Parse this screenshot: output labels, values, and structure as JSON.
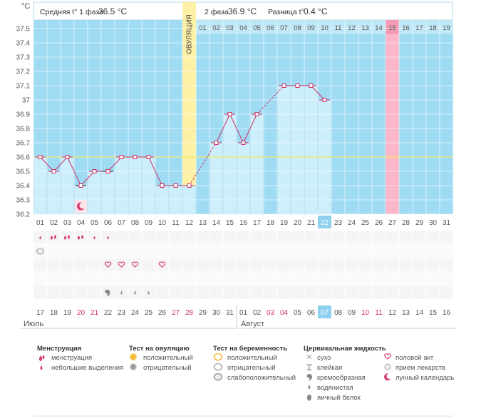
{
  "chart_data": {
    "type": "bar",
    "unit": "°С",
    "ylim": [
      36.2,
      37.5
    ],
    "y_ticks": [
      "36.2",
      "36.3",
      "36.4",
      "36.5",
      "36.6",
      "36.7",
      "36.8",
      "36.9",
      "37",
      "37.1",
      "37.2",
      "37.3",
      "37.4",
      "37.5"
    ],
    "cycle_days": [
      "01",
      "02",
      "03",
      "04",
      "05",
      "06",
      "07",
      "08",
      "09",
      "10",
      "11",
      "12",
      "13",
      "14",
      "15",
      "16",
      "17",
      "18",
      "19",
      "20",
      "21",
      "22",
      "23",
      "24",
      "25",
      "26",
      "27",
      "28",
      "29",
      "30",
      "31"
    ],
    "temperatures": [
      36.6,
      36.5,
      36.6,
      36.4,
      36.5,
      36.5,
      36.6,
      36.6,
      36.6,
      36.4,
      36.4,
      36.4,
      null,
      36.7,
      36.9,
      36.7,
      36.9,
      null,
      37.1,
      37.1,
      37.1,
      37.0,
      null,
      null,
      null,
      null,
      null,
      null,
      null,
      null,
      null
    ],
    "interpolated_days": [
      13,
      18
    ],
    "highlight_day_index": 21,
    "coverline": 36.6,
    "phase1": {
      "label": "Средняя t° 1 фаза",
      "value": "36.5 °С"
    },
    "phase2": {
      "label": "2 фаза",
      "value": "36.9 °С"
    },
    "difference": {
      "label": "Разница t°",
      "value": "0.4 °С"
    },
    "ovulation": {
      "label": "ОВУЛЯЦИЯ",
      "day_index": 11
    },
    "top_axis_days": [
      "01",
      "02",
      "03",
      "04",
      "05",
      "06",
      "07",
      "08",
      "09",
      "10",
      "11",
      "12",
      "13",
      "14",
      "15",
      "16",
      "17",
      "18",
      "19"
    ],
    "top_axis_start_index": 12,
    "pink_top_index": 26,
    "calendar_dates": [
      "17",
      "18",
      "19",
      "20",
      "21",
      "22",
      "23",
      "24",
      "25",
      "26",
      "27",
      "28",
      "29",
      "30",
      "31",
      "01",
      "02",
      "03",
      "04",
      "05",
      "06",
      "07",
      "08",
      "09",
      "10",
      "11",
      "12",
      "13",
      "14",
      "15",
      "16"
    ],
    "weekend_indices": [
      3,
      4,
      10,
      11,
      17,
      18,
      24,
      25
    ],
    "today_index": 21,
    "month1": "Июль",
    "month2": "Август",
    "month2_start_index": 15,
    "menstruation_rows": {
      "heavy": [
        1,
        2,
        3
      ],
      "light": [
        0,
        4,
        5
      ]
    },
    "moon_day_index": 3,
    "preg_test_day_index": 0,
    "heart_day_indices": [
      5,
      6,
      7,
      9
    ],
    "cream_day_indices": [
      5
    ],
    "watery_day_indices": [
      6,
      7,
      8
    ],
    "colors": {
      "sky": "#9fdcf4",
      "bar": "#cdeefb",
      "line": "#cc3366",
      "ovulation": "#fdf1a6",
      "pink": "#fbb6c8",
      "weekend": "#cc3366",
      "today": "#8fd0ee"
    }
  },
  "legend": {
    "menstruation": {
      "title": "Менструация",
      "items": [
        "менструация",
        "небольшие выделения"
      ]
    },
    "ovulation_test": {
      "title": "Тест на овуляцию",
      "items": [
        "положительный",
        "отрицательный"
      ]
    },
    "pregnancy_test": {
      "title": "Тест на беременность",
      "items": [
        "положительный",
        "отрицательный",
        "слабоположительный"
      ]
    },
    "cervical_fluid": {
      "title": "Цервикальная жидкость",
      "items": [
        "сухо",
        "клейкая",
        "кремообразная",
        "водянистая",
        "яичный белок"
      ]
    },
    "other": {
      "items": [
        "половой акт",
        "прием лекарств",
        "лунный календарь"
      ]
    }
  }
}
